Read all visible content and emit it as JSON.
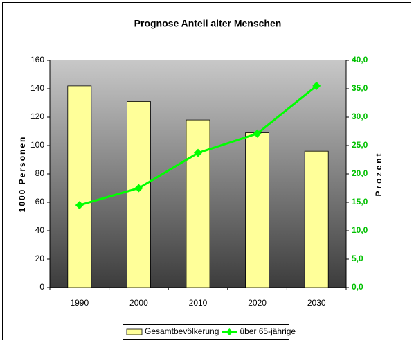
{
  "chart_data": {
    "type": "bar",
    "title": "Prognose Anteil alter Menschen",
    "categories": [
      "1990",
      "2000",
      "2010",
      "2020",
      "2030"
    ],
    "series": [
      {
        "name": "Gesamtbevölkerung",
        "type": "bar",
        "color": "#ffff99",
        "values": [
          142,
          131,
          118,
          109,
          96
        ]
      },
      {
        "name": "über 65-jährige",
        "type": "line",
        "axis": "y2",
        "color": "#00ff00",
        "values": [
          14.5,
          17.5,
          23.7,
          27.1,
          35.5
        ]
      }
    ],
    "ylabel": "1000 Personen",
    "y2label": "Prozent",
    "ylim": [
      0,
      160
    ],
    "yticks": [
      0,
      20,
      40,
      60,
      80,
      100,
      120,
      140,
      160
    ],
    "y2lim": [
      0,
      40
    ],
    "y2ticks": [
      {
        "value": 0,
        "label": "0,0"
      },
      {
        "value": 5,
        "label": "5,0"
      },
      {
        "value": 10,
        "label": "10,0"
      },
      {
        "value": 15,
        "label": "15,0"
      },
      {
        "value": 20,
        "label": "20,0"
      },
      {
        "value": 25,
        "label": "25,0"
      },
      {
        "value": 30,
        "label": "30,0"
      },
      {
        "value": 35,
        "label": "35,0"
      },
      {
        "value": 40,
        "label": "40,0"
      }
    ],
    "legend": "bottom"
  }
}
